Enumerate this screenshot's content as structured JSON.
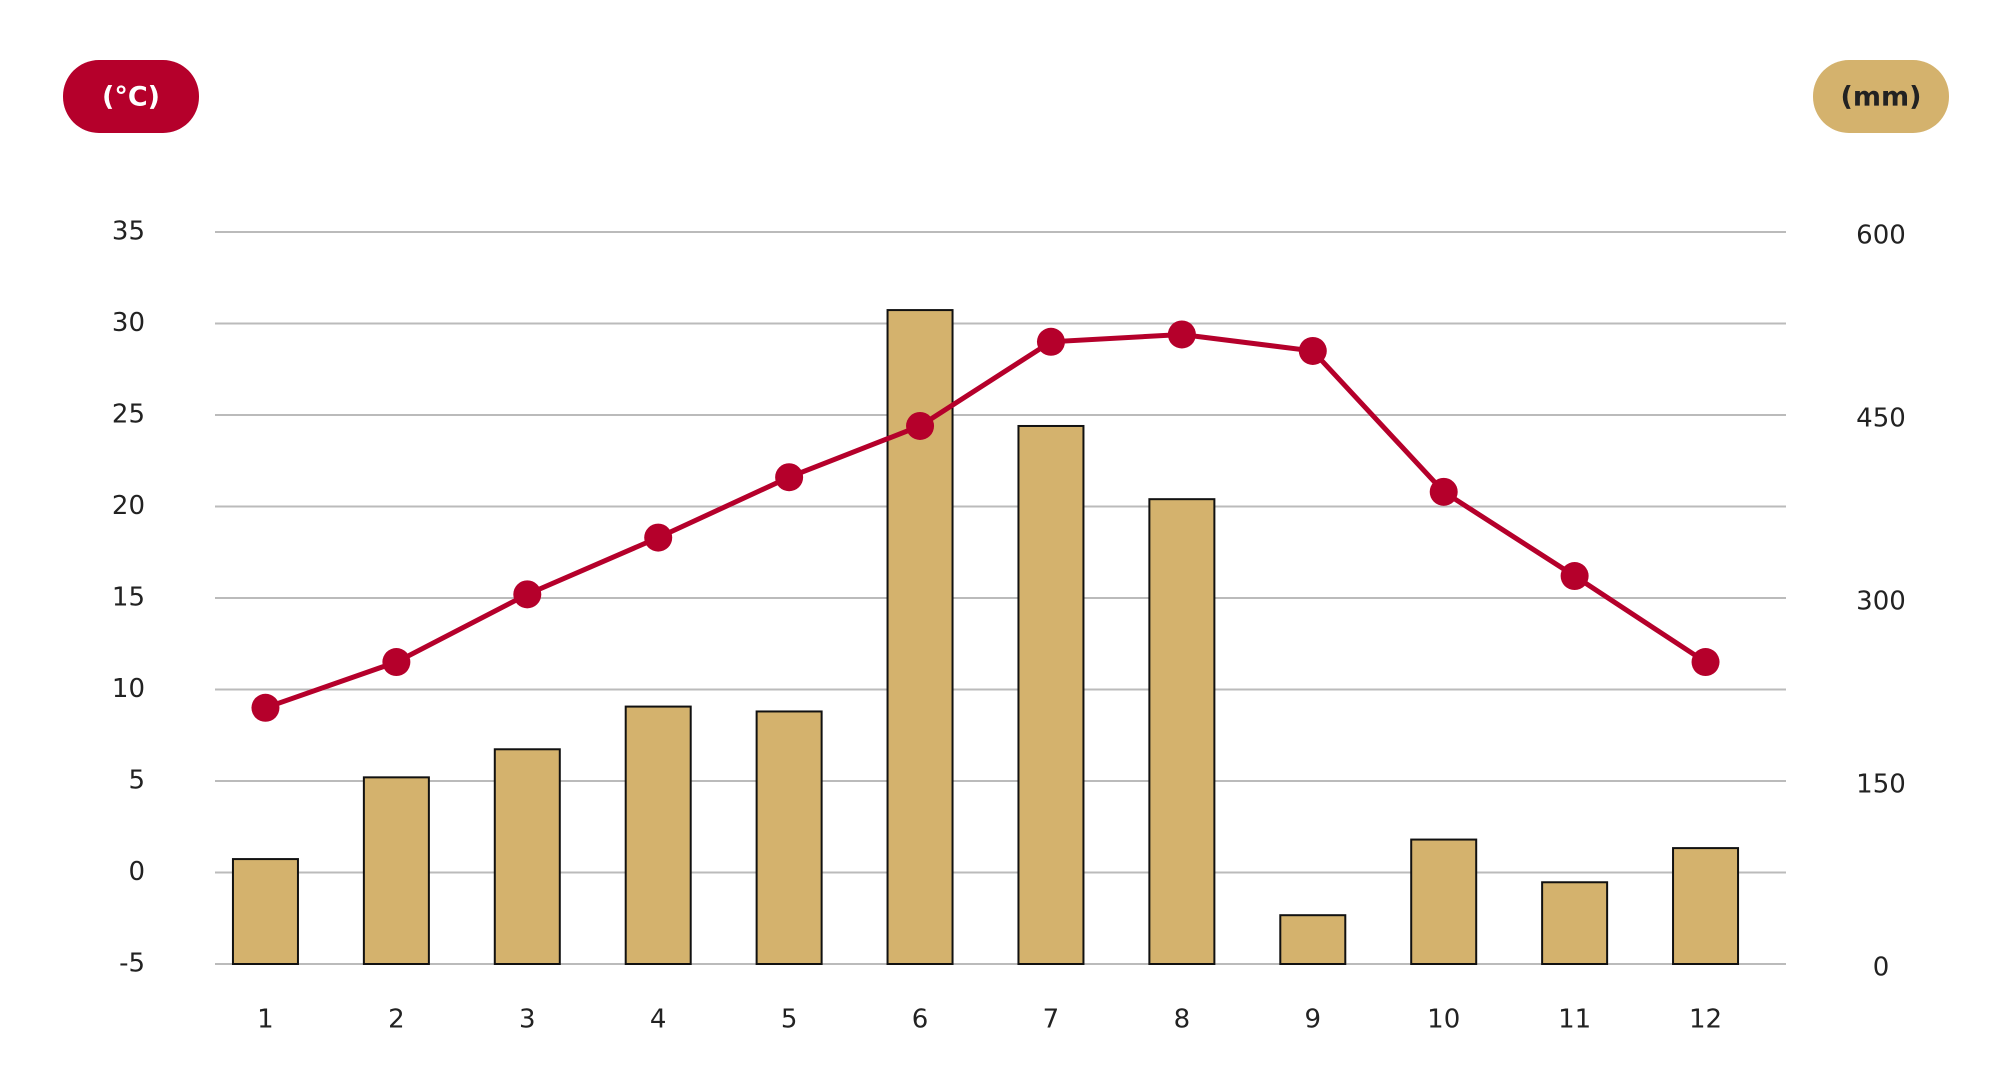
{
  "chart_data": {
    "type": "combo",
    "ylabel": "(°C)",
    "y2label": "(mm)",
    "categories": [
      "1",
      "2",
      "3",
      "4",
      "5",
      "6",
      "7",
      "8",
      "9",
      "10",
      "11",
      "12"
    ],
    "ylim": [
      -5,
      35
    ],
    "yticks": [
      -5,
      0,
      5,
      10,
      15,
      20,
      25,
      30,
      35
    ],
    "y2lim": [
      0,
      600
    ],
    "y2ticks": [
      0,
      150,
      300,
      450,
      600
    ],
    "grid": true,
    "series": [
      {
        "type": "bar",
        "axis": "y2",
        "color": "#d4b26d",
        "values": [
          86,
          153,
          176,
          211,
          207,
          536,
          441,
          381,
          40,
          102,
          67,
          95
        ]
      },
      {
        "type": "line",
        "axis": "y",
        "color": "#b5002b",
        "values": [
          9.0,
          11.5,
          15.2,
          18.3,
          21.6,
          24.4,
          29.0,
          29.4,
          28.5,
          20.8,
          16.2,
          11.5
        ]
      }
    ]
  }
}
